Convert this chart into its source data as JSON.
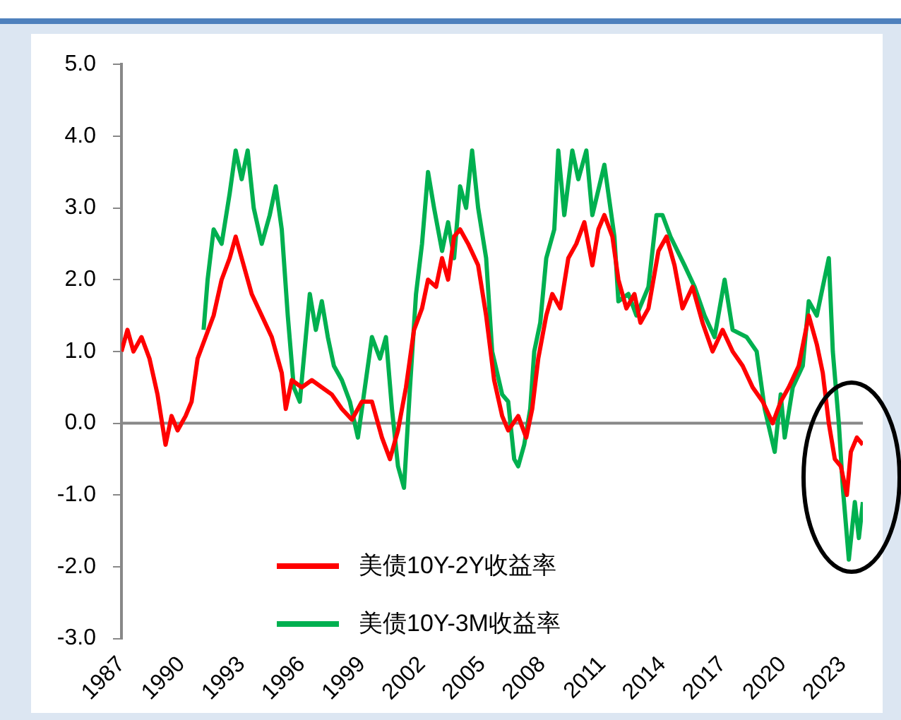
{
  "chart_data": {
    "type": "line",
    "xlim": [
      1987,
      2024
    ],
    "xticks": [
      1987,
      1990,
      1993,
      1996,
      1999,
      2002,
      2005,
      2008,
      2011,
      2014,
      2017,
      2020,
      2023
    ],
    "ylim": [
      -3,
      5
    ],
    "yticks": [
      {
        "value": 5,
        "label": "5.0"
      },
      {
        "value": 4,
        "label": "4.0"
      },
      {
        "value": 3,
        "label": "3.0"
      },
      {
        "value": 2,
        "label": "2.0"
      },
      {
        "value": 1,
        "label": "1.0"
      },
      {
        "value": 0,
        "label": "0.0"
      },
      {
        "value": -1,
        "label": "-1.0"
      },
      {
        "value": -2,
        "label": "-2.0"
      },
      {
        "value": -3,
        "label": "-3.0"
      }
    ],
    "ref_lines": [
      {
        "axis": "y",
        "value": 0,
        "label": null
      }
    ],
    "grid": false,
    "legend": "bottom",
    "marker": "none",
    "line_style": "solid",
    "series": [
      {
        "name": "美债10Y-2Y收益率",
        "color": "#ff0000",
        "x": [
          1987.0,
          1987.3,
          1987.6,
          1988.0,
          1988.4,
          1988.8,
          1989.2,
          1989.5,
          1989.8,
          1990.2,
          1990.5,
          1990.8,
          1991.2,
          1991.6,
          1992.0,
          1992.4,
          1992.7,
          1993.0,
          1993.5,
          1994.0,
          1994.5,
          1995.0,
          1995.2,
          1995.5,
          1996.0,
          1996.5,
          1997.0,
          1997.5,
          1998.0,
          1998.5,
          1999.0,
          1999.5,
          2000.0,
          2000.4,
          2000.8,
          2001.2,
          2001.6,
          2002.0,
          2002.3,
          2002.7,
          2003.0,
          2003.3,
          2003.6,
          2003.9,
          2004.3,
          2004.8,
          2005.2,
          2005.6,
          2006.0,
          2006.3,
          2006.8,
          2007.2,
          2007.5,
          2007.8,
          2008.2,
          2008.5,
          2008.9,
          2009.3,
          2009.7,
          2010.1,
          2010.5,
          2010.8,
          2011.1,
          2011.5,
          2011.8,
          2012.2,
          2012.6,
          2012.9,
          2013.3,
          2013.8,
          2014.2,
          2014.6,
          2015.0,
          2015.5,
          2016.0,
          2016.5,
          2017.0,
          2017.5,
          2018.0,
          2018.5,
          2019.0,
          2019.5,
          2019.9,
          2020.3,
          2020.8,
          2021.3,
          2021.7,
          2022.0,
          2022.3,
          2022.6,
          2022.9,
          2023.2,
          2023.4,
          2023.7,
          2024.0
        ],
        "values": [
          1.0,
          1.3,
          1.0,
          1.2,
          0.9,
          0.4,
          -0.3,
          0.1,
          -0.1,
          0.1,
          0.3,
          0.9,
          1.2,
          1.5,
          2.0,
          2.3,
          2.6,
          2.3,
          1.8,
          1.5,
          1.2,
          0.7,
          0.2,
          0.6,
          0.5,
          0.6,
          0.5,
          0.4,
          0.2,
          0.05,
          0.3,
          0.3,
          -0.2,
          -0.5,
          -0.1,
          0.5,
          1.3,
          1.6,
          2.0,
          1.9,
          2.3,
          2.0,
          2.6,
          2.7,
          2.5,
          2.2,
          1.5,
          0.6,
          0.1,
          -0.1,
          0.1,
          -0.2,
          0.2,
          0.9,
          1.5,
          1.8,
          1.6,
          2.3,
          2.5,
          2.8,
          2.2,
          2.7,
          2.9,
          2.6,
          2.0,
          1.6,
          1.8,
          1.4,
          1.6,
          2.4,
          2.6,
          2.2,
          1.6,
          1.9,
          1.4,
          1.0,
          1.3,
          1.0,
          0.8,
          0.5,
          0.3,
          0.0,
          0.3,
          0.5,
          0.8,
          1.5,
          1.1,
          0.7,
          0.0,
          -0.5,
          -0.6,
          -1.0,
          -0.4,
          -0.2,
          -0.3
        ]
      },
      {
        "name": "美债10Y-3M收益率",
        "color": "#00b050",
        "x": [
          1991.1,
          1991.3,
          1991.6,
          1992.0,
          1992.4,
          1992.7,
          1993.0,
          1993.3,
          1993.6,
          1994.0,
          1994.4,
          1994.7,
          1995.0,
          1995.3,
          1995.6,
          1995.9,
          1996.2,
          1996.4,
          1996.7,
          1997.0,
          1997.3,
          1997.6,
          1998.0,
          1998.4,
          1998.8,
          1999.2,
          1999.5,
          1999.9,
          2000.2,
          2000.5,
          2000.8,
          2001.1,
          2001.4,
          2001.7,
          2002.0,
          2002.3,
          2002.6,
          2003.0,
          2003.3,
          2003.6,
          2003.9,
          2004.2,
          2004.5,
          2004.8,
          2005.2,
          2005.5,
          2006.0,
          2006.3,
          2006.6,
          2006.8,
          2007.1,
          2007.4,
          2007.6,
          2007.9,
          2008.2,
          2008.6,
          2008.8,
          2009.1,
          2009.5,
          2009.8,
          2010.2,
          2010.5,
          2011.1,
          2011.6,
          2011.8,
          2012.3,
          2012.7,
          2013.3,
          2013.7,
          2014.0,
          2014.4,
          2015.1,
          2015.6,
          2016.1,
          2016.6,
          2017.1,
          2017.5,
          2018.2,
          2018.7,
          2019.1,
          2019.6,
          2019.9,
          2020.1,
          2020.5,
          2021.0,
          2021.3,
          2021.7,
          2022.3,
          2022.5,
          2022.8,
          2023.0,
          2023.3,
          2023.6,
          2023.8,
          2024.0
        ],
        "values": [
          1.3,
          2.0,
          2.7,
          2.5,
          3.2,
          3.8,
          3.4,
          3.8,
          3.0,
          2.5,
          2.9,
          3.3,
          2.7,
          1.5,
          0.5,
          0.3,
          1.2,
          1.8,
          1.3,
          1.7,
          1.2,
          0.8,
          0.6,
          0.3,
          -0.2,
          0.6,
          1.2,
          0.9,
          1.2,
          0.2,
          -0.6,
          -0.9,
          0.5,
          1.8,
          2.5,
          3.5,
          3.0,
          2.4,
          2.8,
          2.3,
          3.3,
          3.0,
          3.8,
          3.0,
          2.3,
          1.0,
          0.4,
          0.3,
          -0.5,
          -0.6,
          -0.3,
          0.2,
          1.0,
          1.4,
          2.3,
          2.7,
          3.8,
          2.9,
          3.8,
          3.4,
          3.8,
          2.9,
          3.6,
          2.6,
          1.7,
          1.8,
          1.5,
          1.9,
          2.9,
          2.9,
          2.6,
          2.2,
          1.9,
          1.5,
          1.2,
          2.0,
          1.3,
          1.2,
          1.0,
          0.2,
          -0.4,
          0.4,
          -0.2,
          0.5,
          0.8,
          1.7,
          1.5,
          2.3,
          1.0,
          0.0,
          -0.9,
          -1.9,
          -1.1,
          -1.6,
          -1.1
        ]
      }
    ]
  }
}
